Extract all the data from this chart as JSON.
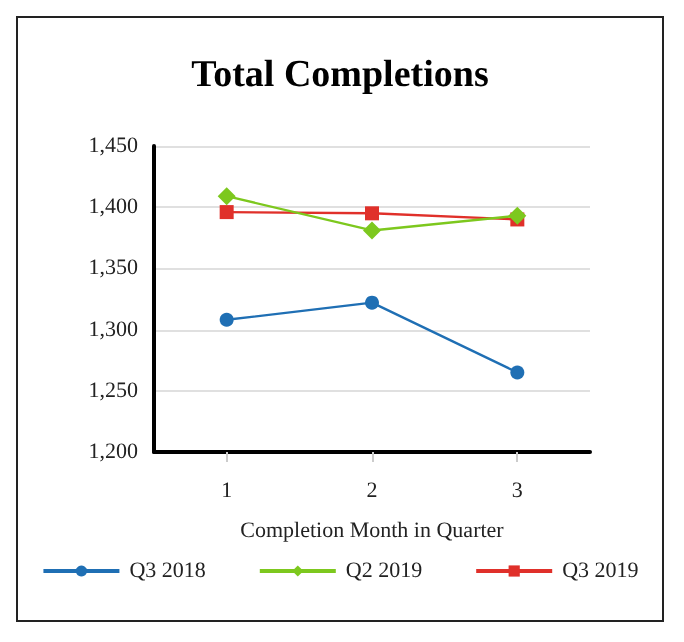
{
  "chart_data": {
    "type": "line",
    "title": "Total Completions",
    "xlabel": "Completion Month in Quarter",
    "categories": [
      "1",
      "2",
      "3"
    ],
    "ylim": [
      1200,
      1450
    ],
    "yticks": [
      {
        "value": 1200,
        "label": "1,200"
      },
      {
        "value": 1250,
        "label": "1,250"
      },
      {
        "value": 1300,
        "label": "1,300"
      },
      {
        "value": 1350,
        "label": "1,350"
      },
      {
        "value": 1400,
        "label": "1,400"
      },
      {
        "value": 1450,
        "label": "1,450"
      }
    ],
    "grid": "y",
    "legend": "bottom",
    "series": [
      {
        "name": "Q3 2018",
        "color": "#1f6fb4",
        "marker": "circle",
        "values": [
          1308,
          1322,
          1265
        ]
      },
      {
        "name": "Q2 2019",
        "color": "#7dc81e",
        "marker": "diamond",
        "values": [
          1409,
          1381,
          1393
        ]
      },
      {
        "name": "Q3 2019",
        "color": "#e0302a",
        "marker": "square",
        "values": [
          1396,
          1395,
          1390
        ]
      }
    ]
  }
}
